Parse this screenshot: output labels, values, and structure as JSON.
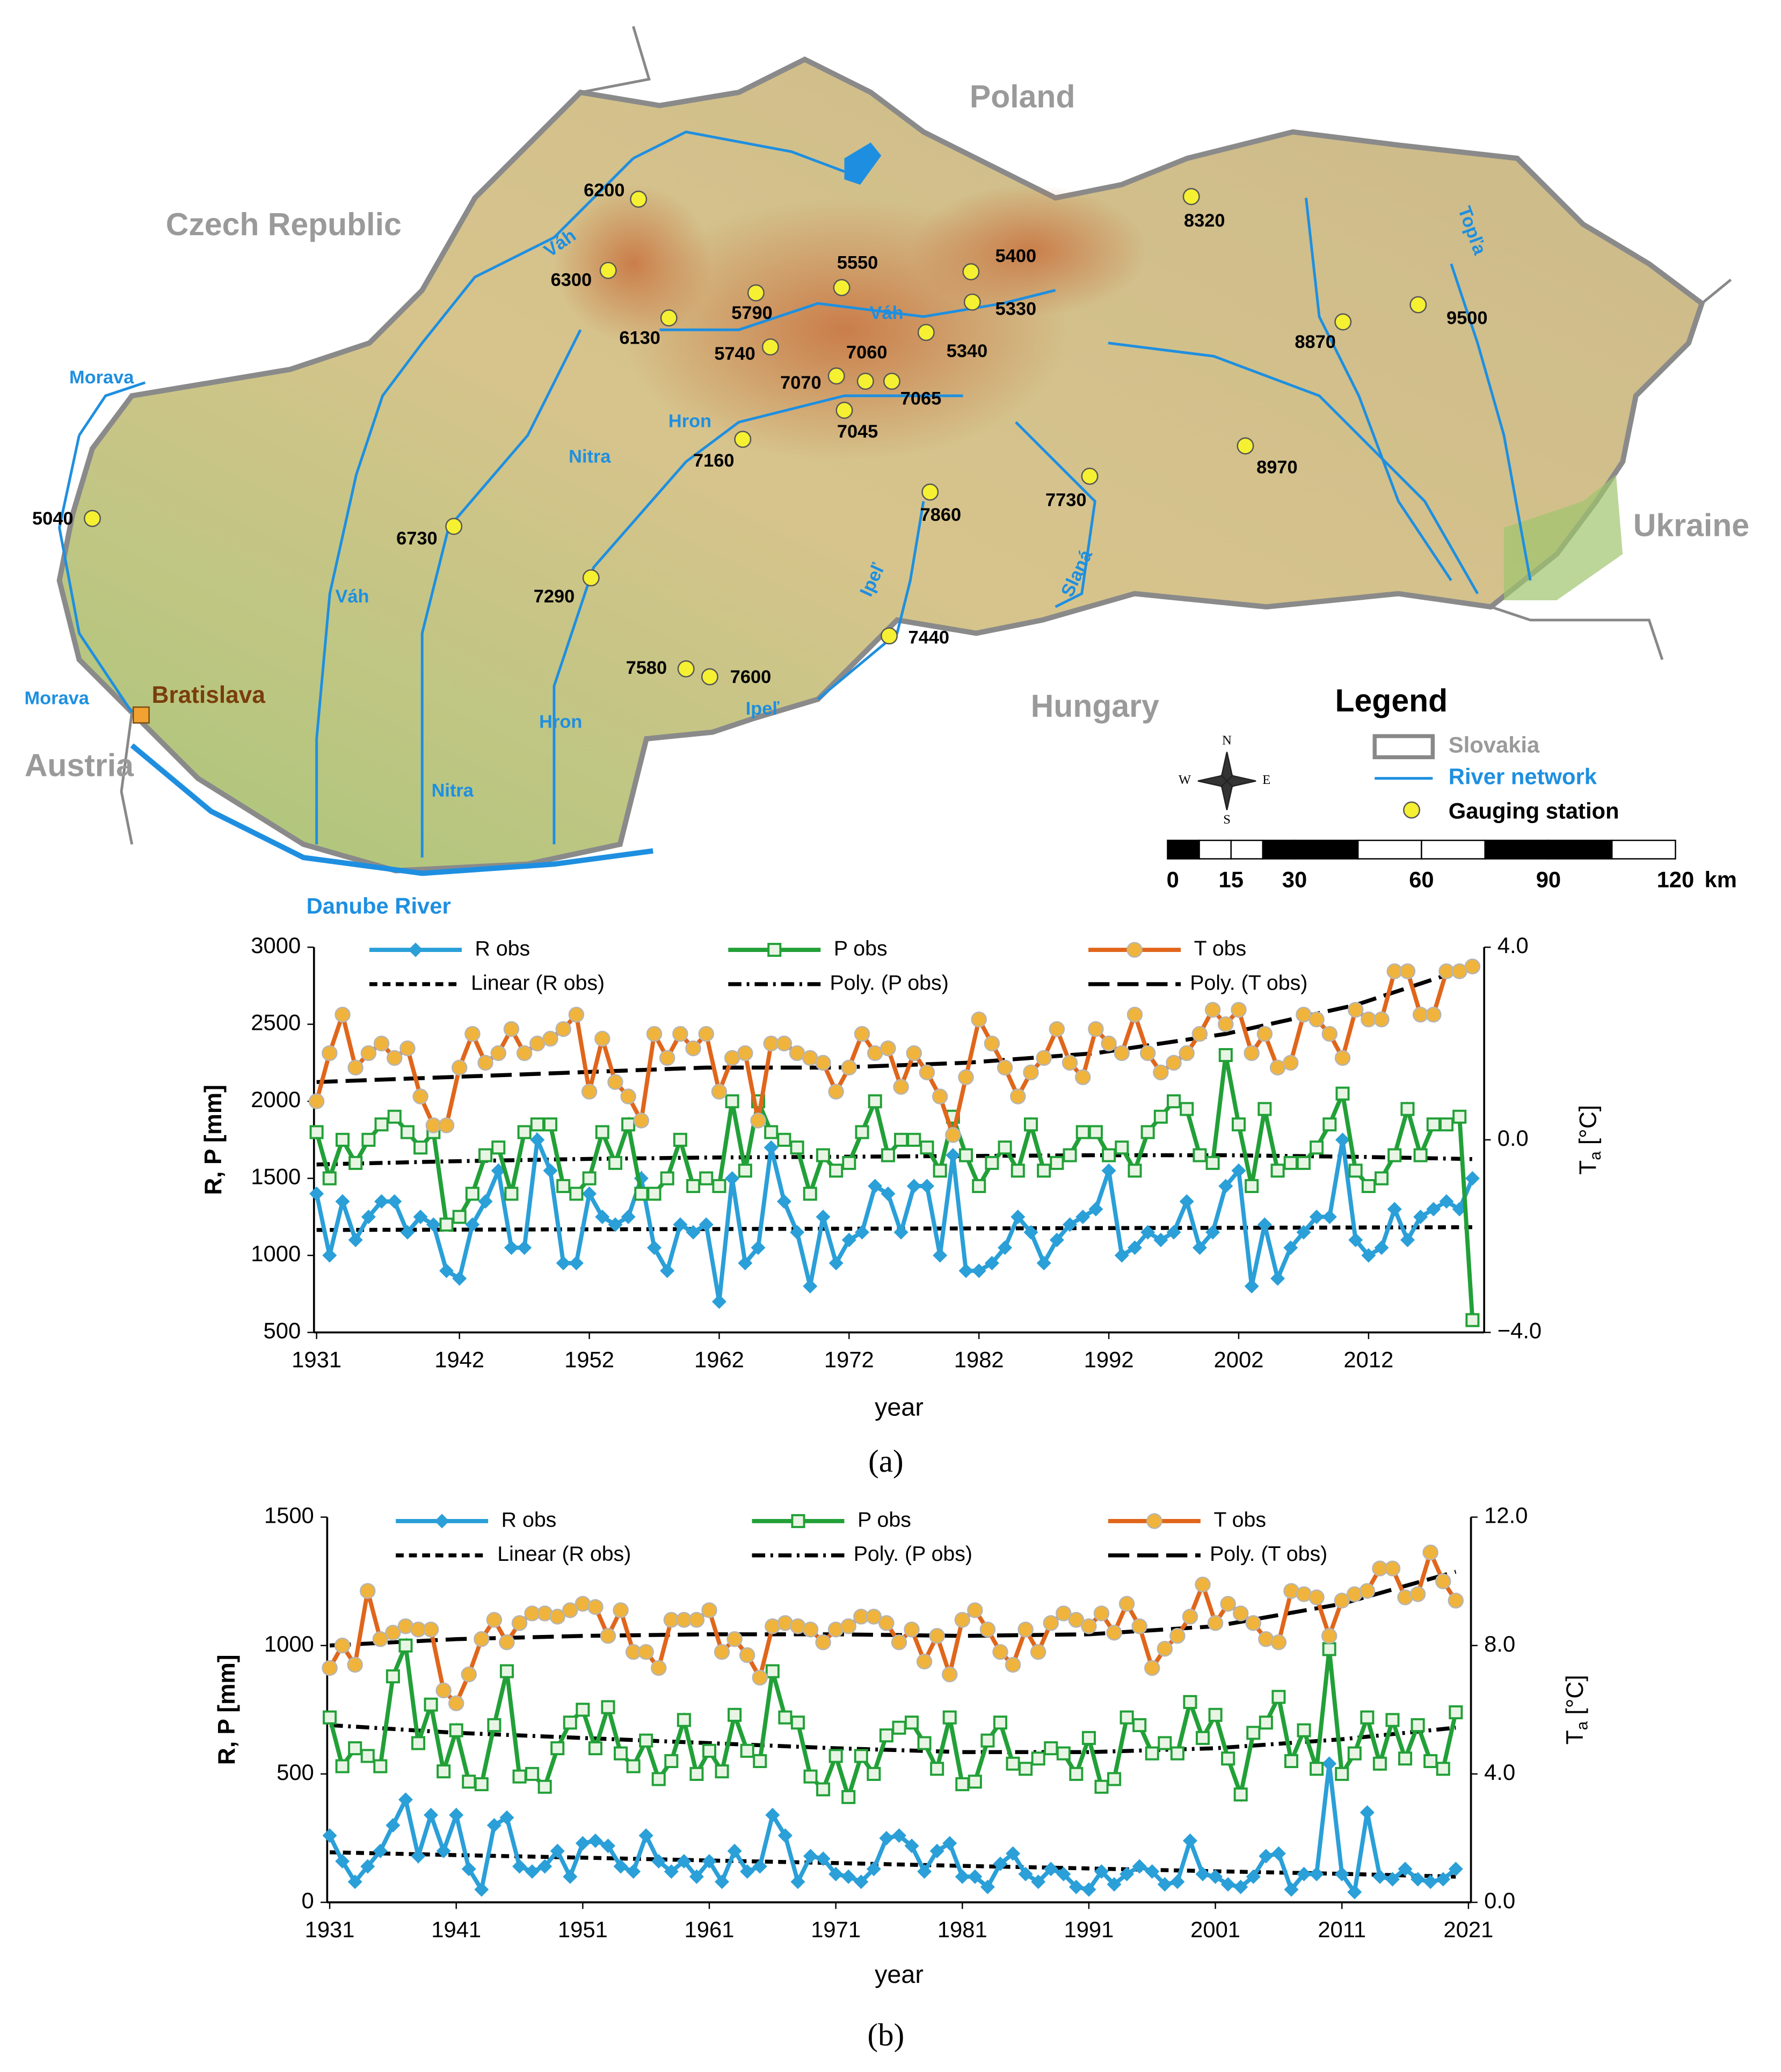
{
  "map": {
    "countries": [
      "Poland",
      "Czech Republic",
      "Ukraine",
      "Hungary",
      "Austria"
    ],
    "rivers": [
      "Váh",
      "Váh",
      "Váh",
      "Morava",
      "Morava",
      "Nitra",
      "Nitra",
      "Hron",
      "Hron",
      "Ipeľ",
      "Ipeľ",
      "Slaná",
      "Topľa",
      "Danube River"
    ],
    "city": "Bratislava",
    "stations": [
      "6200",
      "6300",
      "6130",
      "5790",
      "5550",
      "5740",
      "5400",
      "5330",
      "5340",
      "7060",
      "7070",
      "7065",
      "7045",
      "7160",
      "8320",
      "8870",
      "9500",
      "8970",
      "7730",
      "7860",
      "6730",
      "5040",
      "7290",
      "7440",
      "7580",
      "7600"
    ],
    "legend": {
      "title": "Legend",
      "items": [
        "Slovakia",
        "River network",
        "Gauging station"
      ]
    },
    "compass": [
      "N",
      "S",
      "W",
      "E"
    ],
    "scale_bar": {
      "ticks": [
        0,
        15,
        30,
        60,
        90,
        120
      ],
      "unit": "km"
    }
  },
  "chart_data": [
    {
      "type": "line",
      "caption": "(a)",
      "x_label": "year",
      "y_label": "R, P [mm]",
      "y2_label": [
        "T",
        "a",
        " [°C]"
      ],
      "x": [
        1931,
        1932,
        1933,
        1934,
        1935,
        1936,
        1937,
        1938,
        1939,
        1940,
        1941,
        1942,
        1943,
        1944,
        1945,
        1946,
        1947,
        1948,
        1949,
        1950,
        1951,
        1952,
        1953,
        1954,
        1955,
        1956,
        1957,
        1958,
        1959,
        1960,
        1961,
        1962,
        1963,
        1964,
        1965,
        1966,
        1967,
        1968,
        1969,
        1970,
        1971,
        1972,
        1973,
        1974,
        1975,
        1976,
        1977,
        1978,
        1979,
        1980,
        1981,
        1982,
        1983,
        1984,
        1985,
        1986,
        1987,
        1988,
        1989,
        1990,
        1991,
        1992,
        1993,
        1994,
        1995,
        1996,
        1997,
        1998,
        1999,
        2000,
        2001,
        2002,
        2003,
        2004,
        2005,
        2006,
        2007,
        2008,
        2009,
        2010,
        2011,
        2012,
        2013,
        2014,
        2015,
        2016,
        2017,
        2018,
        2019,
        2020
      ],
      "xlim": [
        1930.8,
        2020.9
      ],
      "xticks": [
        1931,
        1942,
        1952,
        1962,
        1972,
        1982,
        1992,
        2002,
        2012
      ],
      "ylim": [
        500,
        3000
      ],
      "yticks": [
        500,
        1000,
        1500,
        2000,
        2500,
        3000
      ],
      "y2lim": [
        -4,
        4
      ],
      "y2ticks": [
        {
          "value": -4,
          "label": "−4.0"
        },
        {
          "value": 0,
          "label": "0.0"
        },
        {
          "value": 4,
          "label": "4.0"
        }
      ],
      "series": [
        {
          "name": "R obs",
          "color": "#2a9fd8",
          "marker": "diamond",
          "values": [
            1400,
            1000,
            1350,
            1100,
            1250,
            1350,
            1350,
            1150,
            1250,
            1200,
            900,
            850,
            1200,
            1350,
            1550,
            1050,
            1050,
            1750,
            1550,
            950,
            950,
            1400,
            1250,
            1200,
            1250,
            1500,
            1050,
            900,
            1200,
            1150,
            1200,
            700,
            1500,
            950,
            1050,
            1700,
            1350,
            1150,
            800,
            1250,
            950,
            1100,
            1150,
            1450,
            1400,
            1150,
            1450,
            1450,
            1000,
            1650,
            900,
            900,
            950,
            1050,
            1250,
            1150,
            950,
            1100,
            1200,
            1250,
            1300,
            1550,
            1000,
            1050,
            1150,
            1100,
            1150,
            1350,
            1050,
            1150,
            1450,
            1550,
            800,
            1200,
            850,
            1050,
            1150,
            1250,
            1250,
            1750,
            1100,
            1000,
            1050,
            1300,
            1100,
            1250,
            1300,
            1350,
            1300,
            1500
          ]
        },
        {
          "name": "P obs",
          "color": "#22a038",
          "marker": "square",
          "values": [
            1800,
            1500,
            1750,
            1600,
            1750,
            1850,
            1900,
            1800,
            1700,
            1800,
            1200,
            1250,
            1400,
            1650,
            1700,
            1400,
            1800,
            1850,
            1850,
            1450,
            1400,
            1500,
            1800,
            1600,
            1850,
            1400,
            1400,
            1500,
            1750,
            1450,
            1500,
            1450,
            2000,
            1550,
            2000,
            1800,
            1750,
            1700,
            1400,
            1650,
            1550,
            1600,
            1800,
            2000,
            1650,
            1750,
            1750,
            1700,
            1550,
            1900,
            1650,
            1450,
            1600,
            1700,
            1550,
            1850,
            1550,
            1600,
            1650,
            1800,
            1800,
            1650,
            1700,
            1550,
            1800,
            1900,
            2000,
            1950,
            1650,
            1600,
            2300,
            1850,
            1450,
            1950,
            1550,
            1600,
            1600,
            1700,
            1850,
            2050,
            1550,
            1450,
            1500,
            1650,
            1950,
            1650,
            1850,
            1850,
            1900,
            580
          ]
        },
        {
          "name": "T obs",
          "color": "#e0661b",
          "marker": "circle",
          "axis": "y2",
          "values": [
            0.8,
            1.8,
            2.6,
            1.5,
            1.8,
            2.0,
            1.7,
            1.9,
            0.9,
            0.3,
            0.3,
            1.5,
            2.2,
            1.6,
            1.8,
            2.3,
            1.8,
            2.0,
            2.1,
            2.3,
            2.6,
            1.0,
            2.1,
            1.2,
            0.9,
            0.4,
            2.2,
            1.7,
            2.2,
            1.9,
            2.2,
            1.0,
            1.7,
            1.8,
            0.4,
            2.0,
            2.0,
            1.8,
            1.7,
            1.6,
            1.0,
            1.5,
            2.2,
            1.8,
            1.9,
            1.1,
            1.8,
            1.4,
            0.9,
            0.1,
            1.3,
            2.5,
            2.0,
            1.5,
            0.9,
            1.4,
            1.7,
            2.3,
            1.6,
            1.3,
            2.3,
            2.0,
            1.8,
            2.6,
            1.8,
            1.4,
            1.6,
            1.8,
            2.2,
            2.7,
            2.4,
            2.7,
            1.8,
            2.2,
            1.5,
            1.6,
            2.6,
            2.5,
            2.2,
            1.7,
            2.7,
            2.5,
            2.5,
            3.5,
            3.5,
            2.6,
            2.6,
            3.5,
            3.5,
            3.6
          ]
        }
      ],
      "trends": [
        {
          "name": "Linear (R obs)",
          "color": "#000000",
          "dash": "short",
          "x": [
            1931,
            1941,
            1951,
            1961,
            1971,
            1981,
            1991,
            2001,
            2011,
            2020
          ],
          "values": [
            1165,
            1167,
            1169,
            1171,
            1173,
            1175,
            1177,
            1179,
            1181,
            1183
          ]
        },
        {
          "name": "Poly. (P obs)",
          "color": "#000000",
          "dash": "dashdot",
          "x": [
            1931,
            1941,
            1951,
            1961,
            1971,
            1981,
            1991,
            2001,
            2011,
            2020
          ],
          "values": [
            1590,
            1610,
            1625,
            1635,
            1640,
            1645,
            1650,
            1650,
            1640,
            1625
          ]
        },
        {
          "name": "Poly. (T obs)",
          "color": "#000000",
          "dash": "long",
          "axis": "y2",
          "x": [
            1931,
            1941,
            1951,
            1961,
            1971,
            1981,
            1991,
            2001,
            2011,
            2020
          ],
          "values": [
            1.2,
            1.3,
            1.4,
            1.5,
            1.5,
            1.6,
            1.8,
            2.2,
            2.8,
            3.6
          ]
        }
      ]
    },
    {
      "type": "line",
      "caption": "(b)",
      "x_label": "year",
      "y_label": "R, P [mm]",
      "y2_label": [
        "T",
        "a",
        " [°C]"
      ],
      "x": [
        1931,
        1932,
        1933,
        1934,
        1935,
        1936,
        1937,
        1938,
        1939,
        1940,
        1941,
        1942,
        1943,
        1944,
        1945,
        1946,
        1947,
        1948,
        1949,
        1950,
        1951,
        1952,
        1953,
        1954,
        1955,
        1956,
        1957,
        1958,
        1959,
        1960,
        1961,
        1962,
        1963,
        1964,
        1965,
        1966,
        1967,
        1968,
        1969,
        1970,
        1971,
        1972,
        1973,
        1974,
        1975,
        1976,
        1977,
        1978,
        1979,
        1980,
        1981,
        1982,
        1983,
        1984,
        1985,
        1986,
        1987,
        1988,
        1989,
        1990,
        1991,
        1992,
        1993,
        1994,
        1995,
        1996,
        1997,
        1998,
        1999,
        2000,
        2001,
        2002,
        2003,
        2004,
        2005,
        2006,
        2007,
        2008,
        2009,
        2010,
        2011,
        2012,
        2013,
        2014,
        2015,
        2016,
        2017,
        2018,
        2019,
        2020
      ],
      "xlim": [
        1930.8,
        2021.2
      ],
      "xticks": [
        1931,
        1941,
        1951,
        1961,
        1971,
        1981,
        1991,
        2001,
        2011,
        2021
      ],
      "ylim": [
        0,
        1500
      ],
      "yticks": [
        0,
        500,
        1000,
        1500
      ],
      "y2lim": [
        0,
        12
      ],
      "y2ticks": [
        {
          "value": 0,
          "label": "0.0"
        },
        {
          "value": 4,
          "label": "4.0"
        },
        {
          "value": 8,
          "label": "8.0"
        },
        {
          "value": 12,
          "label": "12.0"
        }
      ],
      "series": [
        {
          "name": "R obs",
          "color": "#2a9fd8",
          "marker": "diamond",
          "values": [
            260,
            160,
            80,
            140,
            200,
            300,
            400,
            180,
            340,
            200,
            340,
            130,
            50,
            300,
            330,
            140,
            120,
            140,
            200,
            100,
            230,
            240,
            220,
            140,
            120,
            260,
            160,
            120,
            160,
            100,
            160,
            80,
            200,
            120,
            140,
            340,
            260,
            80,
            180,
            170,
            110,
            100,
            80,
            130,
            250,
            260,
            220,
            120,
            200,
            230,
            100,
            100,
            60,
            150,
            190,
            110,
            80,
            130,
            110,
            60,
            50,
            120,
            70,
            110,
            140,
            120,
            70,
            80,
            240,
            110,
            100,
            70,
            60,
            100,
            180,
            190,
            50,
            110,
            110,
            540,
            110,
            40,
            350,
            100,
            90,
            130,
            90,
            80,
            90,
            130
          ]
        },
        {
          "name": "P obs",
          "color": "#22a038",
          "marker": "square",
          "values": [
            720,
            530,
            600,
            570,
            530,
            880,
            1000,
            620,
            770,
            510,
            670,
            470,
            460,
            690,
            900,
            490,
            500,
            450,
            600,
            700,
            750,
            600,
            760,
            580,
            530,
            630,
            480,
            550,
            710,
            500,
            590,
            510,
            730,
            590,
            550,
            900,
            720,
            700,
            490,
            440,
            570,
            410,
            570,
            500,
            650,
            680,
            700,
            620,
            520,
            720,
            460,
            470,
            630,
            700,
            540,
            520,
            560,
            600,
            580,
            500,
            640,
            450,
            480,
            720,
            690,
            580,
            620,
            580,
            780,
            640,
            730,
            560,
            420,
            660,
            700,
            800,
            550,
            670,
            520,
            986,
            500,
            580,
            720,
            540,
            710,
            560,
            690,
            550,
            520,
            740
          ]
        },
        {
          "name": "T obs",
          "color": "#e0661b",
          "marker": "circle",
          "axis": "y2",
          "values": [
            7.3,
            8.0,
            7.4,
            9.7,
            8.2,
            8.4,
            8.6,
            8.5,
            8.5,
            6.6,
            6.2,
            7.1,
            8.2,
            8.8,
            8.1,
            8.7,
            9.0,
            9.0,
            8.9,
            9.1,
            9.3,
            9.2,
            8.3,
            9.1,
            7.8,
            7.8,
            7.3,
            8.8,
            8.8,
            8.8,
            9.1,
            7.8,
            8.2,
            7.7,
            7.0,
            8.6,
            8.7,
            8.6,
            8.5,
            8.1,
            8.5,
            8.6,
            8.9,
            8.9,
            8.7,
            8.1,
            8.5,
            7.5,
            8.3,
            7.1,
            8.8,
            9.1,
            8.5,
            7.8,
            7.4,
            8.5,
            7.8,
            8.7,
            9.0,
            8.8,
            8.6,
            9.0,
            8.4,
            9.3,
            8.6,
            7.3,
            7.9,
            8.3,
            8.9,
            9.9,
            8.7,
            9.3,
            9.0,
            8.7,
            8.2,
            8.1,
            9.7,
            9.6,
            9.5,
            8.3,
            9.4,
            9.6,
            9.7,
            10.4,
            10.4,
            9.5,
            9.6,
            10.9,
            10.0,
            9.4
          ]
        }
      ],
      "trends": [
        {
          "name": "Linear (R obs)",
          "color": "#000000",
          "dash": "short",
          "x": [
            1931,
            1941,
            1951,
            1961,
            1971,
            1981,
            1991,
            2001,
            2011,
            2020
          ],
          "values": [
            195,
            184,
            174,
            163,
            153,
            142,
            132,
            121,
            111,
            100
          ]
        },
        {
          "name": "Poly. (P obs)",
          "color": "#000000",
          "dash": "dashdot",
          "x": [
            1931,
            1941,
            1951,
            1961,
            1971,
            1981,
            1991,
            2001,
            2011,
            2020
          ],
          "values": [
            690,
            660,
            640,
            620,
            600,
            585,
            585,
            600,
            635,
            680
          ]
        },
        {
          "name": "Poly. (T obs)",
          "color": "#000000",
          "dash": "long",
          "axis": "y2",
          "x": [
            1931,
            1941,
            1951,
            1961,
            1971,
            1981,
            1991,
            2001,
            2011,
            2020
          ],
          "values": [
            8.0,
            8.2,
            8.3,
            8.35,
            8.35,
            8.3,
            8.35,
            8.6,
            9.3,
            10.3
          ]
        }
      ]
    }
  ]
}
